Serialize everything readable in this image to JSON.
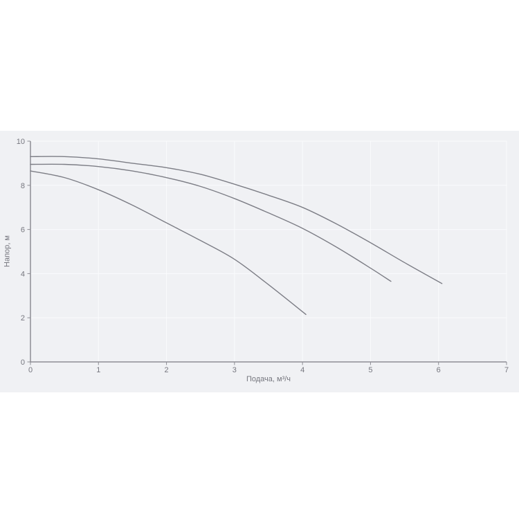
{
  "chart_data": {
    "type": "line",
    "title": "",
    "xlabel": "Подача, м³/ч",
    "ylabel": "Напор, м",
    "xlim": [
      0,
      7
    ],
    "ylim": [
      0,
      10
    ],
    "grid": true,
    "legend": "none",
    "x_ticks": [
      {
        "value": 0,
        "label": "0"
      },
      {
        "value": 1,
        "label": "1"
      },
      {
        "value": 2,
        "label": "2"
      },
      {
        "value": 3,
        "label": "3"
      },
      {
        "value": 4,
        "label": "4"
      },
      {
        "value": 5,
        "label": "5"
      },
      {
        "value": 6,
        "label": "6"
      },
      {
        "value": 7,
        "label": "7"
      }
    ],
    "y_ticks": [
      {
        "value": 0,
        "label": "0"
      },
      {
        "value": 2,
        "label": "2"
      },
      {
        "value": 4,
        "label": "4"
      },
      {
        "value": 6,
        "label": "6"
      },
      {
        "value": 8,
        "label": "8"
      },
      {
        "value": 10,
        "label": "10"
      }
    ],
    "series": [
      {
        "points": [
          [
            0,
            8.65
          ],
          [
            0.5,
            8.35
          ],
          [
            1,
            7.8
          ],
          [
            1.5,
            7.1
          ],
          [
            2,
            6.3
          ],
          [
            2.5,
            5.5
          ],
          [
            3,
            4.65
          ],
          [
            3.5,
            3.5
          ],
          [
            4.05,
            2.15
          ]
        ]
      },
      {
        "points": [
          [
            0,
            8.95
          ],
          [
            0.5,
            8.95
          ],
          [
            1,
            8.85
          ],
          [
            1.5,
            8.65
          ],
          [
            2,
            8.35
          ],
          [
            2.5,
            7.95
          ],
          [
            3,
            7.4
          ],
          [
            3.5,
            6.75
          ],
          [
            4,
            6.05
          ],
          [
            4.5,
            5.2
          ],
          [
            5,
            4.25
          ],
          [
            5.3,
            3.65
          ]
        ]
      },
      {
        "points": [
          [
            0,
            9.3
          ],
          [
            0.5,
            9.3
          ],
          [
            1,
            9.2
          ],
          [
            1.5,
            9.0
          ],
          [
            2,
            8.8
          ],
          [
            2.5,
            8.5
          ],
          [
            3,
            8.05
          ],
          [
            3.5,
            7.55
          ],
          [
            4,
            7.0
          ],
          [
            4.5,
            6.25
          ],
          [
            5,
            5.4
          ],
          [
            5.5,
            4.5
          ],
          [
            6.05,
            3.55
          ]
        ]
      }
    ],
    "colors": {
      "panel_background": "#f0f1f4",
      "page_background": "#ffffff",
      "gridline": "#fafbfd",
      "axis": "#8d8d94",
      "curve": "#7c7d85",
      "text": "#75767e"
    }
  }
}
